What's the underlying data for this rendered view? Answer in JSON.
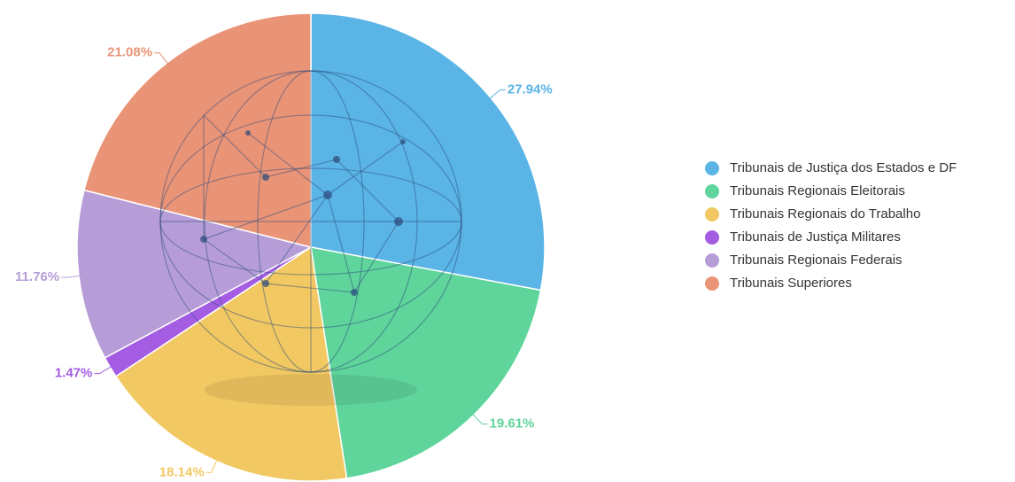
{
  "chart_data": {
    "type": "pie",
    "categories": [
      "Tribunais de Justiça dos Estados e DF",
      "Tribunais Regionais Eleitorais",
      "Tribunais Regionais do Trabalho",
      "Tribunais de Justiça Militares",
      "Tribunais Regionais Federais",
      "Tribunais Superiores"
    ],
    "values": [
      27.94,
      19.61,
      18.14,
      1.47,
      11.76,
      21.08
    ],
    "value_labels": [
      "27.94%",
      "19.61%",
      "18.14%",
      "1.47%",
      "11.76%",
      "21.08%"
    ],
    "colors": [
      "#5ab4e6",
      "#5fd49b",
      "#f1c862",
      "#a45ce2",
      "#b69dd8",
      "#ea9477"
    ],
    "legend": "right"
  }
}
